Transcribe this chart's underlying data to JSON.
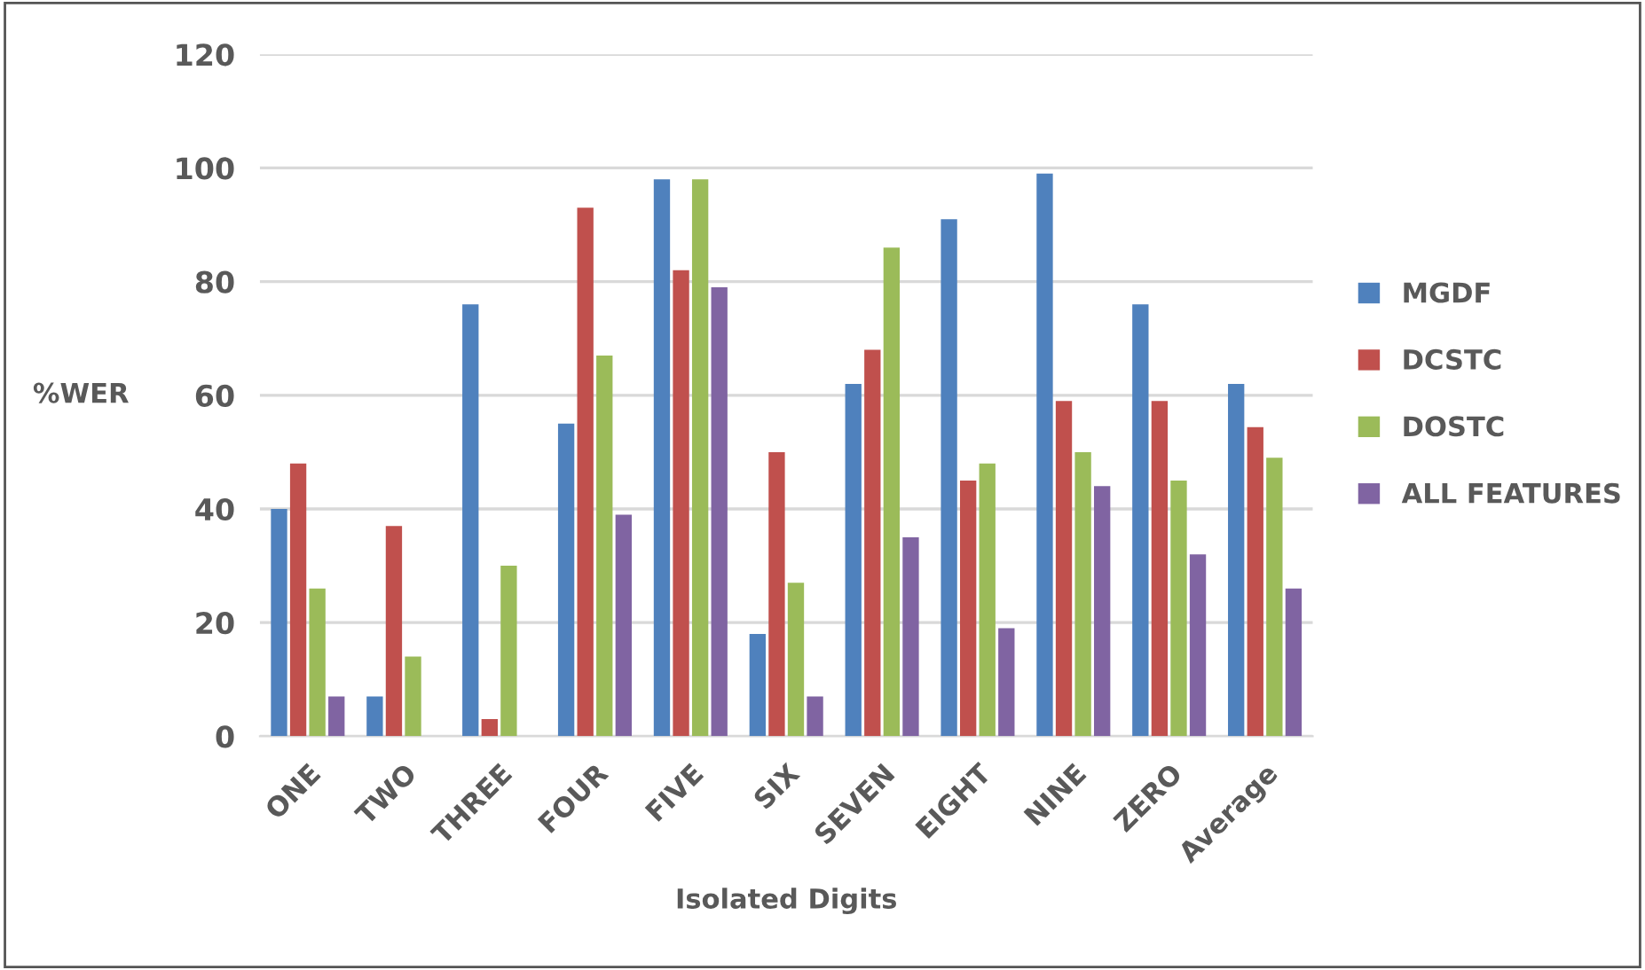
{
  "chart_data": {
    "type": "bar",
    "xlabel": "Isolated Digits",
    "ylabel": "%WER",
    "categories": [
      "ONE",
      "TWO",
      "THREE",
      "FOUR",
      "FIVE",
      "SIX",
      "SEVEN",
      "EIGHT",
      "NINE",
      "ZERO",
      "Average"
    ],
    "series": [
      {
        "name": "MGDF",
        "color": "#4f81bd",
        "values": [
          40,
          7,
          76,
          55,
          98,
          18,
          62,
          91,
          99,
          76,
          62
        ]
      },
      {
        "name": "DCSTC",
        "color": "#c0504d",
        "values": [
          48,
          37,
          3,
          93,
          82,
          50,
          68,
          45,
          59,
          59,
          54.4
        ]
      },
      {
        "name": "DOSTC",
        "color": "#9bbb59",
        "values": [
          26,
          14,
          30,
          67,
          98,
          27,
          86,
          48,
          50,
          45,
          49
        ]
      },
      {
        "name": "ALL FEATURES",
        "color": "#8064a2",
        "values": [
          7,
          0,
          0,
          39,
          79,
          7,
          35,
          19,
          44,
          32,
          26
        ]
      }
    ],
    "ylim": [
      0,
      120
    ],
    "yticks": [
      0,
      20,
      40,
      60,
      80,
      100,
      120
    ],
    "grid": "y",
    "legend": "right"
  }
}
